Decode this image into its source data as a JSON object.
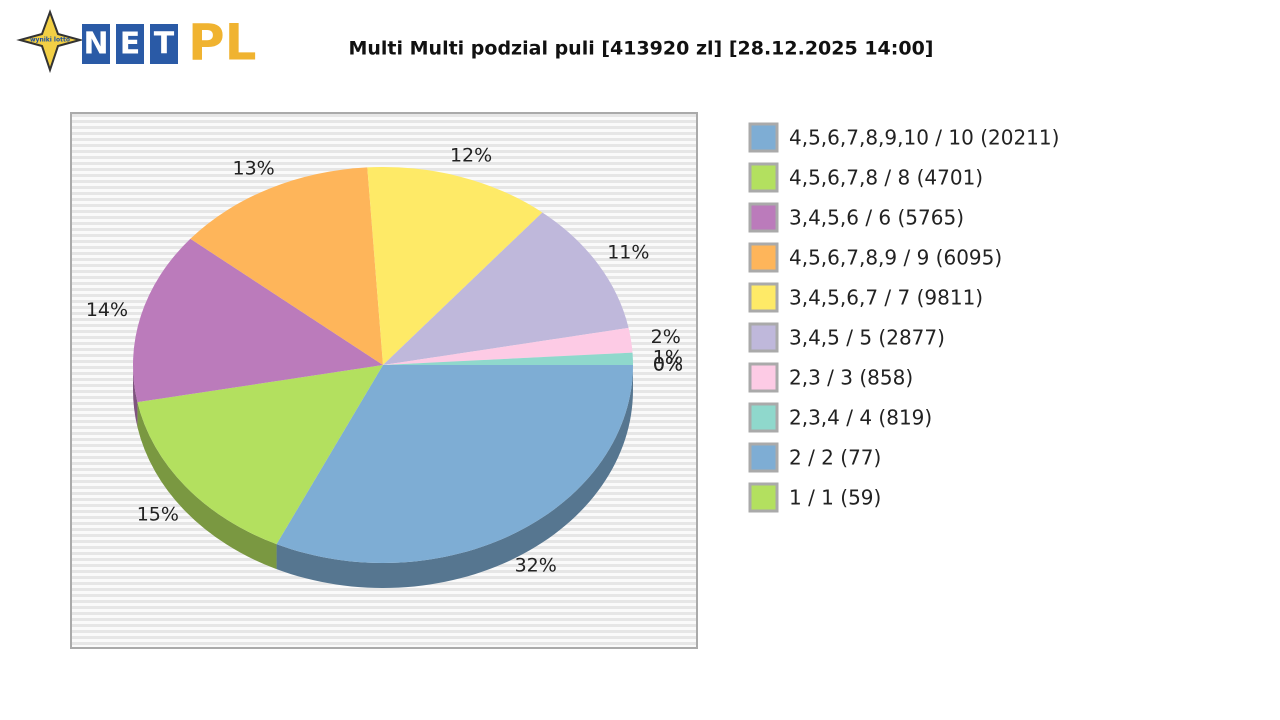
{
  "logo": {
    "star": "wyniki lotto",
    "letters": [
      "N",
      "E",
      "T"
    ],
    "suffix": "PL"
  },
  "chart_data": {
    "type": "pie",
    "title": "Multi Multi podzial puli [413920 zl] [28.12.2025 14:00]",
    "categories": [
      "4,5,6,7,8,9,10 / 10 (20211)",
      "4,5,6,7,8 / 8 (4701)",
      "3,4,5,6 / 6 (5765)",
      "4,5,6,7,8,9 / 9 (6095)",
      "3,4,5,6,7 / 7 (9811)",
      "3,4,5 / 5 (2877)",
      "2,3 / 3 (858)",
      "2,3,4 / 4 (819)",
      "2 / 2 (77)",
      "1 / 1 (59)"
    ],
    "values": [
      32,
      15,
      14,
      13,
      12,
      11,
      2,
      1,
      0,
      0
    ],
    "value_labels": [
      "32%",
      "15%",
      "14%",
      "13%",
      "12%",
      "11%",
      "2%",
      "1%",
      "0%",
      "0%"
    ],
    "colors": [
      "#7eadd4",
      "#b3e05f",
      "#bb7bbb",
      "#feb55a",
      "#feea67",
      "#bfb8db",
      "#fdcbe5",
      "#8fd8cc",
      "#7eadd4",
      "#b3e05f"
    ],
    "legend": "right"
  }
}
